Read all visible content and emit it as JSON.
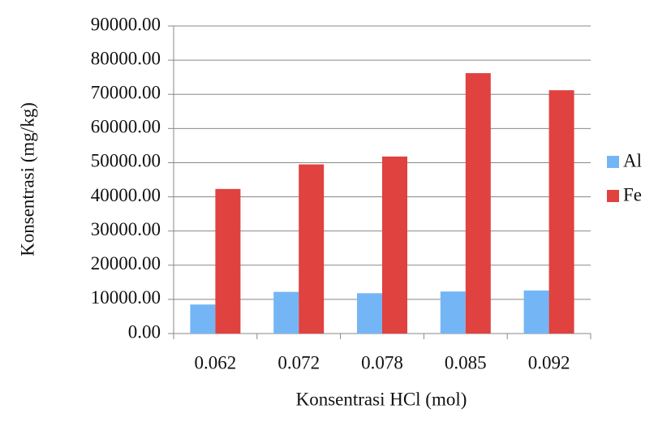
{
  "chart_data": {
    "type": "bar",
    "x_label": "Konsentrasi HCl  (mol)",
    "y_label": "Konsentrasi (mg/kg)",
    "categories": [
      "0.062",
      "0.072",
      "0.078",
      "0.085",
      "0.092"
    ],
    "series": [
      {
        "name": "Al",
        "color": "#74b6f5",
        "values": [
          8500,
          12200,
          11800,
          12300,
          12600
        ]
      },
      {
        "name": "Fe",
        "color": "#e0423f",
        "values": [
          42300,
          49500,
          51800,
          76200,
          71200
        ]
      }
    ],
    "ylim": [
      0,
      90000
    ],
    "yticks": [
      {
        "value": 0,
        "label": "0.00"
      },
      {
        "value": 10000,
        "label": "10000.00"
      },
      {
        "value": 20000,
        "label": "20000.00"
      },
      {
        "value": 30000,
        "label": "30000.00"
      },
      {
        "value": 40000,
        "label": "40000.00"
      },
      {
        "value": 50000,
        "label": "50000.00"
      },
      {
        "value": 60000,
        "label": "60000.00"
      },
      {
        "value": 70000,
        "label": "70000.00"
      },
      {
        "value": 80000,
        "label": "80000.00"
      },
      {
        "value": 90000,
        "label": "90000.00"
      }
    ],
    "grid": true,
    "legend": "right"
  }
}
